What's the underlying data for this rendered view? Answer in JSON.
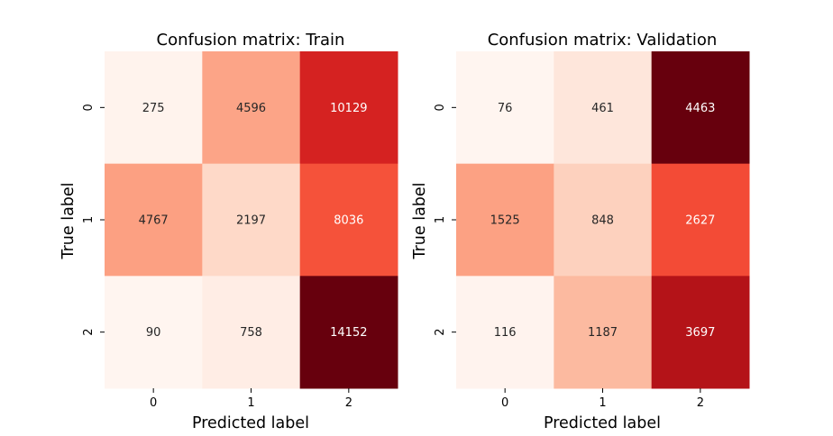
{
  "colors": {
    "colormap": "Reds",
    "background": "#ffffff",
    "text_dark": "#262626",
    "text_light": "#ffffff"
  },
  "chart_data": [
    {
      "type": "heatmap",
      "title": "Confusion matrix: Train",
      "xlabel": "Predicted label",
      "ylabel": "True label",
      "x_categories": [
        "0",
        "1",
        "2"
      ],
      "y_categories": [
        "0",
        "1",
        "2"
      ],
      "values": [
        [
          275,
          4596,
          10129
        ],
        [
          4767,
          2197,
          8036
        ],
        [
          90,
          758,
          14152
        ]
      ],
      "colorbar": false,
      "grid": false
    },
    {
      "type": "heatmap",
      "title": "Confusion matrix: Validation",
      "xlabel": "Predicted label",
      "ylabel": "True label",
      "x_categories": [
        "0",
        "1",
        "2"
      ],
      "y_categories": [
        "0",
        "1",
        "2"
      ],
      "values": [
        [
          76,
          461,
          4463
        ],
        [
          1525,
          848,
          2627
        ],
        [
          116,
          1187,
          3697
        ]
      ],
      "colorbar": false,
      "grid": false
    }
  ]
}
